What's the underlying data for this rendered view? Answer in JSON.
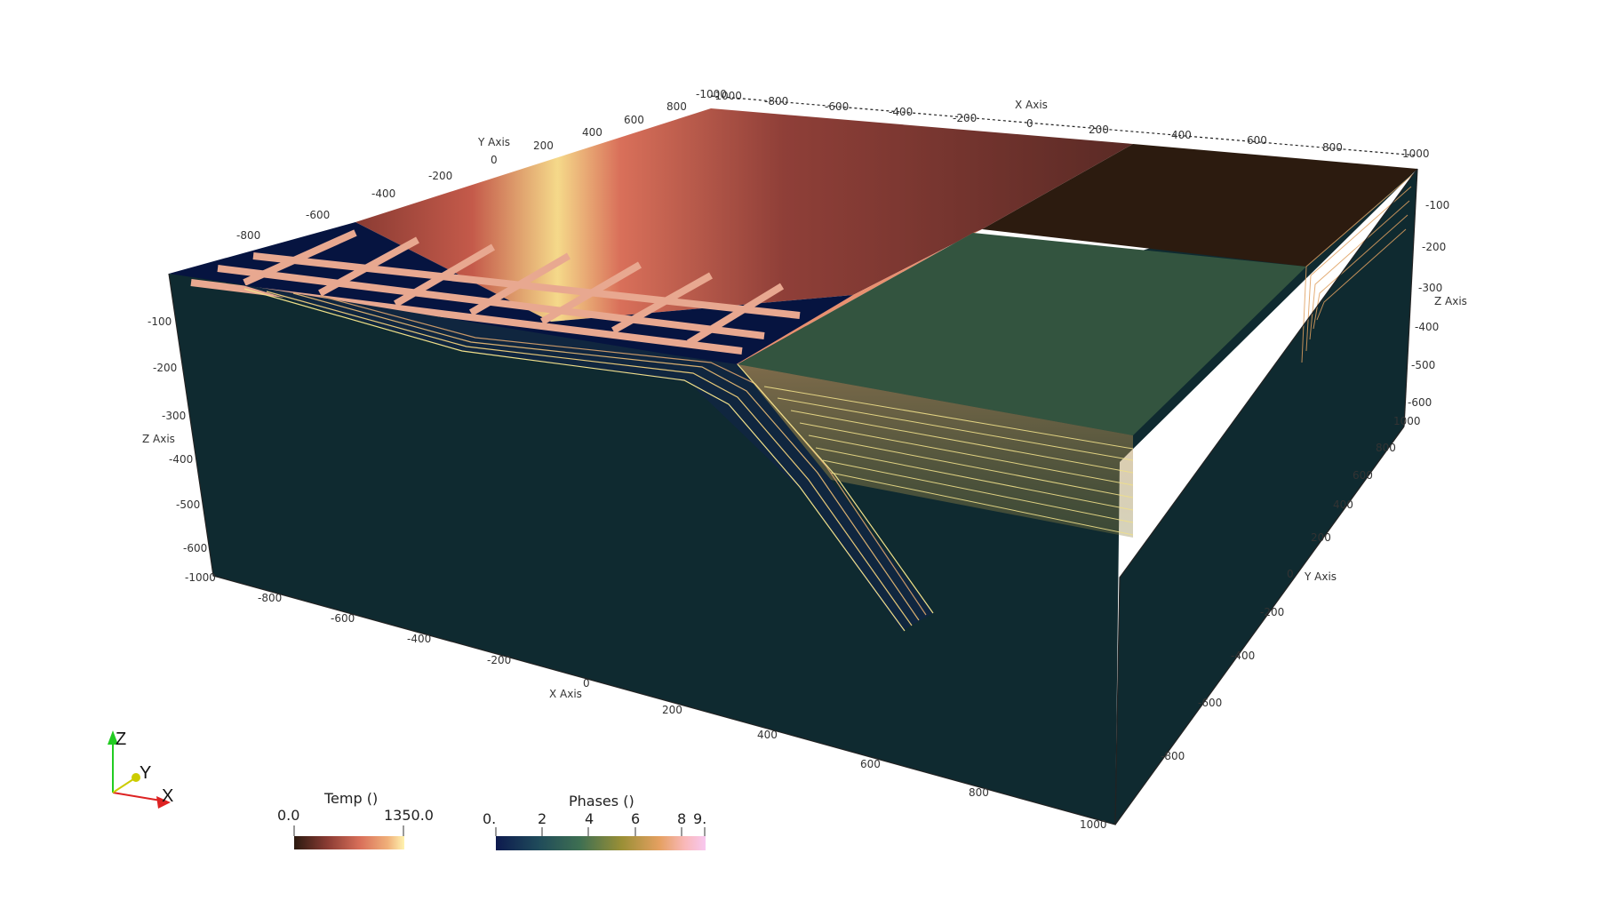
{
  "axes": {
    "x_title": "X Axis",
    "y_title": "Y Axis",
    "z_title": "Z Axis",
    "top_x_ticks": [
      "-1000",
      "-800",
      "-600",
      "-400",
      "-200",
      "0",
      "200",
      "400",
      "600",
      "800",
      "1000"
    ],
    "top_y_ticks": [
      "800",
      "600",
      "400",
      "200",
      "0",
      "-200",
      "-400",
      "-600",
      "-800"
    ],
    "front_x_ticks": [
      "-800",
      "-600",
      "-400",
      "-200",
      "0",
      "200",
      "400",
      "600",
      "800",
      "1000"
    ],
    "right_y_ticks": [
      "1000",
      "800",
      "600",
      "400",
      "200",
      "0",
      "-200",
      "-400",
      "-600",
      "-800"
    ],
    "left_z_ticks": [
      "-100",
      "-200",
      "-300",
      "-400",
      "-500",
      "-600",
      "-1000"
    ],
    "right_z_ticks": [
      "-100",
      "-200",
      "-300",
      "-400",
      "-500",
      "-600"
    ],
    "top_corner_label": "-1000"
  },
  "orientation": {
    "z": "Z",
    "y": "Y",
    "x": "X",
    "z_color": "#22cc22",
    "y_color": "#cccc00",
    "x_color": "#dd2222"
  },
  "colorbars": {
    "temp": {
      "title": "Temp  ()",
      "min": "0.0",
      "max": "1350.0",
      "range": [
        0,
        1350
      ],
      "colors": [
        "#2b1a10",
        "#8a3b33",
        "#d9705a",
        "#f0b07a",
        "#fff3b0"
      ]
    },
    "phases": {
      "title": "Phases  ()",
      "ticks": [
        "0.",
        "2",
        "4",
        "6",
        "8",
        "9."
      ],
      "range": [
        0,
        9
      ],
      "colors": [
        "#0d1a4e",
        "#1f4a5a",
        "#3e6f52",
        "#9a8f36",
        "#e5a061",
        "#f9b8b8",
        "#f8c8f0"
      ]
    }
  },
  "colors": {
    "mantle": "#0f2a30",
    "oceanic_plate": "#061440",
    "grid_lines": "#e8a890",
    "continent": "#33543f",
    "top_dark": "#2c1b0f",
    "slab_edge": "#f0e08a"
  }
}
